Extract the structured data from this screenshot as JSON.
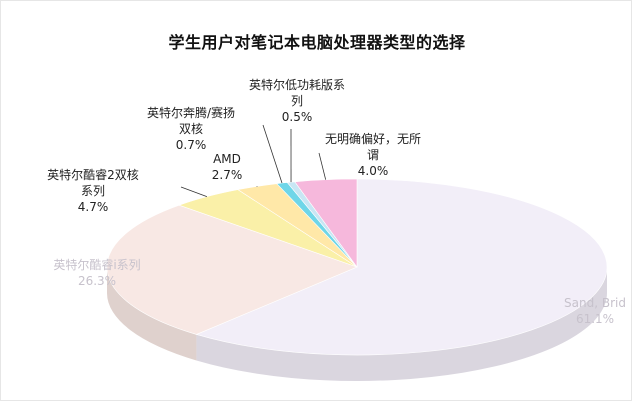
{
  "chart_data": {
    "type": "pie",
    "title": "学生用户对笔记本电脑处理器类型的选择",
    "categories": [
      "Sandy Bridge",
      "英特尔酷睿i系列",
      "英特尔酷睿2双核系列",
      "AMD",
      "英特尔奔腾/赛扬双核",
      "英特尔低功耗版系列",
      "无明确偏好，无所谓"
    ],
    "values": [
      61.1,
      26.3,
      4.7,
      2.7,
      0.7,
      0.5,
      4.0
    ],
    "slice_labels": [
      {
        "lines": [
          "Sand, Brid"
        ],
        "pct": "61.1%"
      },
      {
        "lines": [
          "英特尔酷睿i系列"
        ],
        "pct": "26.3%"
      },
      {
        "lines": [
          "英特尔酷睿2双核",
          "系列"
        ],
        "pct": "4.7%"
      },
      {
        "lines": [
          "AMD"
        ],
        "pct": "2.7%"
      },
      {
        "lines": [
          "英特尔奔腾/赛扬",
          "双核"
        ],
        "pct": "0.7%"
      },
      {
        "lines": [
          "英特尔低功耗版系",
          "列"
        ],
        "pct": "0.5%"
      },
      {
        "lines": [
          "无明确偏好，无所",
          "谓"
        ],
        "pct": "4.0%"
      }
    ],
    "colors": [
      "#f2eef8",
      "#f8e8e4",
      "#faf0a8",
      "#ffe8a8",
      "#6fd6e8",
      "#c8e6f4",
      "#f6b8dc"
    ],
    "legend": "none",
    "style": "3d-pie"
  }
}
